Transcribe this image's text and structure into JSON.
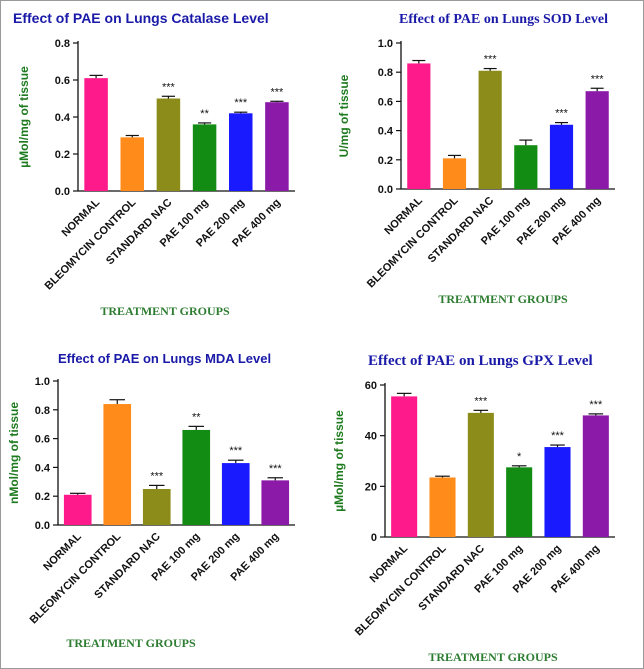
{
  "chart_data": [
    {
      "type": "bar",
      "title": "Effect of PAE on Lungs Catalase Level",
      "ylabel": "µMol/mg of tissue",
      "xlabel": "TREATMENT GROUPS",
      "categories": [
        "NORMAL",
        "BLEOMYCIN CONTROL",
        "STANDARD NAC",
        "PAE 100 mg",
        "PAE 200 mg",
        "PAE 400 mg"
      ],
      "values": [
        0.61,
        0.29,
        0.5,
        0.36,
        0.42,
        0.48
      ],
      "errors": [
        0.015,
        0.01,
        0.012,
        0.008,
        0.006,
        0.005
      ],
      "significance": [
        "",
        "",
        "***",
        "**",
        "***",
        "***"
      ],
      "ylim": [
        0,
        0.8
      ],
      "yticks": [
        "0.0",
        "0.2",
        "0.4",
        "0.6",
        "0.8"
      ],
      "colors": [
        "#ff1a8c",
        "#ff8c1a",
        "#8c8c1a",
        "#128c12",
        "#1a1aff",
        "#8c1aa8"
      ]
    },
    {
      "type": "bar",
      "title": "Effect of PAE on Lungs SOD Level",
      "ylabel": "U/mg of tissue",
      "xlabel": "TREATMENT GROUPS",
      "categories": [
        "NORMAL",
        "BLEOMYCIN CONTROL",
        "STANDARD NAC",
        "PAE 100 mg",
        "PAE 200 mg",
        "PAE 400 mg"
      ],
      "values": [
        0.86,
        0.21,
        0.81,
        0.3,
        0.44,
        0.67
      ],
      "errors": [
        0.02,
        0.02,
        0.015,
        0.035,
        0.015,
        0.02
      ],
      "significance": [
        "",
        "",
        "***",
        "",
        "***",
        "***"
      ],
      "ylim": [
        0,
        1.0
      ],
      "yticks": [
        "0.0",
        "0.2",
        "0.4",
        "0.6",
        "0.8",
        "1.0"
      ],
      "colors": [
        "#ff1a8c",
        "#ff8c1a",
        "#8c8c1a",
        "#128c12",
        "#1a1aff",
        "#8c1aa8"
      ]
    },
    {
      "type": "bar",
      "title": "Effect of PAE on Lungs MDA Level",
      "ylabel": "nMol/mg of tissue",
      "xlabel": "TREATMENT GROUPS",
      "categories": [
        "NORMAL",
        "BLEOMYCIN CONTROL",
        "STANDARD NAC",
        "PAE 100 mg",
        "PAE 200 mg",
        "PAE 400 mg"
      ],
      "values": [
        0.21,
        0.84,
        0.25,
        0.66,
        0.43,
        0.31
      ],
      "errors": [
        0.01,
        0.03,
        0.025,
        0.025,
        0.02,
        0.018
      ],
      "significance": [
        "",
        "",
        "***",
        "**",
        "***",
        "***"
      ],
      "ylim": [
        0,
        1.0
      ],
      "yticks": [
        "0.0",
        "0.2",
        "0.4",
        "0.6",
        "0.8",
        "1.0"
      ],
      "colors": [
        "#ff1a8c",
        "#ff8c1a",
        "#8c8c1a",
        "#128c12",
        "#1a1aff",
        "#8c1aa8"
      ]
    },
    {
      "type": "bar",
      "title": "Effect of PAE on Lungs GPX Level",
      "ylabel": "µMol/mg of tissue",
      "xlabel": "TREATMENT GROUPS",
      "categories": [
        "NORMAL",
        "BLEOMYCIN CONTROL",
        "STANDARD NAC",
        "PAE 100 mg",
        "PAE 200 mg",
        "PAE 400 mg"
      ],
      "values": [
        55.5,
        23.5,
        49,
        27.5,
        35.5,
        48
      ],
      "errors": [
        1.2,
        0.5,
        1.0,
        0.6,
        0.8,
        0.6
      ],
      "significance": [
        "",
        "",
        "***",
        "*",
        "***",
        "***"
      ],
      "ylim": [
        0,
        60
      ],
      "yticks": [
        "0",
        "20",
        "40",
        "60"
      ],
      "colors": [
        "#ff1a8c",
        "#ff8c1a",
        "#8c8c1a",
        "#128c12",
        "#1a1aff",
        "#8c1aa8"
      ]
    }
  ]
}
